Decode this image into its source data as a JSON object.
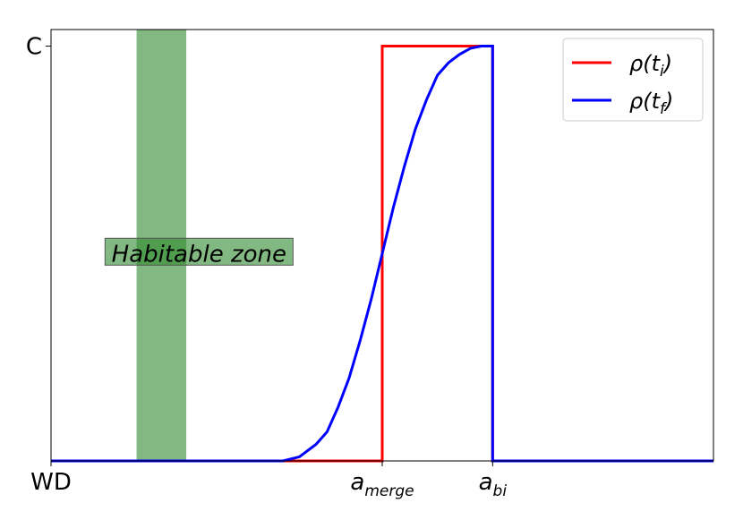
{
  "chart_data": {
    "type": "line",
    "xlim": [
      0,
      12
    ],
    "ylim": [
      0,
      1.04
    ],
    "grid": false,
    "x_ticks": [
      {
        "x": 0,
        "label": "WD"
      },
      {
        "x": 6,
        "label": "a",
        "sub": "merge"
      },
      {
        "x": 8,
        "label": "a",
        "sub": "bi"
      }
    ],
    "y_ticks": [
      {
        "y": 1,
        "label": "C"
      }
    ],
    "series": [
      {
        "name": "ρ(t_i)",
        "legend_label": {
          "base": "ρ(t",
          "sub": "i",
          "close": ")"
        },
        "color": "#ff0000",
        "x": [
          0,
          6,
          6,
          8,
          8,
          12
        ],
        "y": [
          0,
          0,
          1,
          1,
          0,
          0
        ]
      },
      {
        "name": "ρ(t_f)",
        "legend_label": {
          "base": "ρ(t",
          "sub": "f",
          "close": ")"
        },
        "color": "#0000ff",
        "x": [
          0,
          4.2,
          4.5,
          4.8,
          5.0,
          5.2,
          5.4,
          5.6,
          5.8,
          6.0,
          6.2,
          6.4,
          6.6,
          6.8,
          7.0,
          7.2,
          7.4,
          7.6,
          7.8,
          8.0,
          8.0,
          12
        ],
        "y": [
          0,
          0,
          0.01,
          0.04,
          0.07,
          0.13,
          0.2,
          0.29,
          0.39,
          0.5,
          0.61,
          0.71,
          0.8,
          0.87,
          0.93,
          0.96,
          0.98,
          0.995,
          1.0,
          1.0,
          0,
          0
        ]
      }
    ],
    "shaded_region": {
      "x": [
        1.55,
        2.45
      ],
      "color": "#2e8b2e",
      "opacity": 0.6,
      "label": "Habitable zone",
      "label_y": 0.5
    },
    "legend": {
      "placement": "top-right"
    }
  }
}
